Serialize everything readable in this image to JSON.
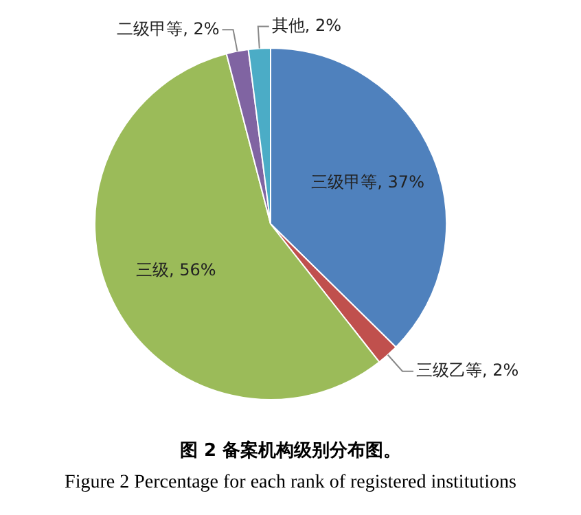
{
  "chart_data": {
    "type": "pie",
    "title": "图 2 备案机构级别分布图。",
    "subtitle": "Figure 2 Percentage for each rank of registered institutions",
    "categories": [
      "三级甲等",
      "三级乙等",
      "三级",
      "二级甲等",
      "其他"
    ],
    "values": [
      37,
      2,
      56,
      2,
      2
    ],
    "value_labels": [
      "37%",
      "2%",
      "56%",
      "2%",
      "2%"
    ],
    "colors": [
      "#4f81bd",
      "#c0504d",
      "#9bbb59",
      "#8064a2",
      "#4bacc6"
    ],
    "legend": false
  }
}
